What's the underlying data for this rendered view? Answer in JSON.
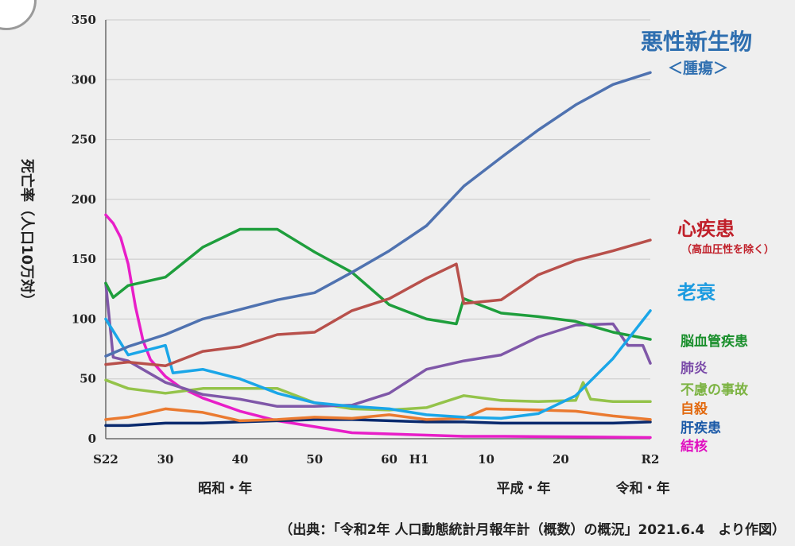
{
  "chart_data": {
    "type": "line",
    "ylabel": "死亡率（人口10万対）",
    "ylim": [
      0,
      350
    ],
    "yticks": [
      0,
      50,
      100,
      150,
      200,
      250,
      300,
      350
    ],
    "grid": true,
    "x_start": 1947,
    "x_end": 2020,
    "x_ticks": [
      {
        "label": "S22",
        "x": 1947
      },
      {
        "label": "30",
        "x": 1955
      },
      {
        "label": "40",
        "x": 1965
      },
      {
        "label": "50",
        "x": 1975
      },
      {
        "label": "60",
        "x": 1985
      },
      {
        "label": "H1",
        "x": 1989
      },
      {
        "label": "10",
        "x": 1998
      },
      {
        "label": "20",
        "x": 2008
      },
      {
        "label": "R2",
        "x": 2020
      }
    ],
    "eras": [
      {
        "label": "昭和・年",
        "x": 1963
      },
      {
        "label": "平成・年",
        "x": 2003
      },
      {
        "label": "令和・年",
        "x": 2019
      }
    ],
    "source": "（出典：「令和2年 人口動態統計月報年計（概数）の概況」2021.6.4　より作図）",
    "series": [
      {
        "name": "悪性新生物",
        "sublabel": "＜腫瘍＞",
        "color": "#4f72b0",
        "label_color": "#2f6fb0",
        "points": [
          [
            1947,
            69
          ],
          [
            1950,
            77
          ],
          [
            1955,
            87
          ],
          [
            1960,
            100
          ],
          [
            1965,
            108
          ],
          [
            1970,
            116
          ],
          [
            1975,
            122
          ],
          [
            1980,
            139
          ],
          [
            1985,
            157
          ],
          [
            1990,
            178
          ],
          [
            1995,
            211
          ],
          [
            2000,
            235
          ],
          [
            2005,
            258
          ],
          [
            2010,
            279
          ],
          [
            2015,
            296
          ],
          [
            2020,
            306
          ]
        ]
      },
      {
        "name": "心疾患",
        "sublabel": "（高血圧性を除く）",
        "color": "#b8504b",
        "label_color": "#c0202a",
        "points": [
          [
            1947,
            62
          ],
          [
            1950,
            64
          ],
          [
            1955,
            61
          ],
          [
            1960,
            73
          ],
          [
            1965,
            77
          ],
          [
            1970,
            87
          ],
          [
            1975,
            89
          ],
          [
            1980,
            107
          ],
          [
            1985,
            117
          ],
          [
            1990,
            134
          ],
          [
            1994,
            146
          ],
          [
            1995,
            113
          ],
          [
            2000,
            116
          ],
          [
            2005,
            137
          ],
          [
            2010,
            149
          ],
          [
            2015,
            157
          ],
          [
            2020,
            166
          ]
        ]
      },
      {
        "name": "老衰",
        "color": "#1aa6e8",
        "label_color": "#1c9be0",
        "points": [
          [
            1947,
            100
          ],
          [
            1950,
            70
          ],
          [
            1955,
            78
          ],
          [
            1956,
            55
          ],
          [
            1960,
            58
          ],
          [
            1965,
            50
          ],
          [
            1970,
            38
          ],
          [
            1975,
            30
          ],
          [
            1980,
            27
          ],
          [
            1985,
            25
          ],
          [
            1990,
            20
          ],
          [
            1995,
            18
          ],
          [
            2000,
            17
          ],
          [
            2005,
            21
          ],
          [
            2010,
            36
          ],
          [
            2015,
            67
          ],
          [
            2020,
            107
          ]
        ]
      },
      {
        "name": "脳血管疾患",
        "color": "#1e9e3c",
        "label_color": "#1a8f2c",
        "points": [
          [
            1947,
            130
          ],
          [
            1948,
            118
          ],
          [
            1950,
            128
          ],
          [
            1955,
            135
          ],
          [
            1960,
            160
          ],
          [
            1965,
            175
          ],
          [
            1970,
            175
          ],
          [
            1975,
            156
          ],
          [
            1980,
            139
          ],
          [
            1985,
            112
          ],
          [
            1990,
            100
          ],
          [
            1994,
            96
          ],
          [
            1995,
            117
          ],
          [
            2000,
            105
          ],
          [
            2005,
            102
          ],
          [
            2010,
            98
          ],
          [
            2015,
            89
          ],
          [
            2020,
            83
          ]
        ]
      },
      {
        "name": "肺炎",
        "color": "#7f57a8",
        "label_color": "#7a4aa8",
        "points": [
          [
            1947,
            130
          ],
          [
            1948,
            68
          ],
          [
            1950,
            65
          ],
          [
            1955,
            47
          ],
          [
            1960,
            37
          ],
          [
            1965,
            33
          ],
          [
            1970,
            27
          ],
          [
            1975,
            27
          ],
          [
            1980,
            28
          ],
          [
            1985,
            38
          ],
          [
            1990,
            58
          ],
          [
            1995,
            65
          ],
          [
            2000,
            70
          ],
          [
            2005,
            85
          ],
          [
            2010,
            95
          ],
          [
            2015,
            96
          ],
          [
            2017,
            78
          ],
          [
            2019,
            78
          ],
          [
            2020,
            63
          ]
        ]
      },
      {
        "name": "不慮の事故",
        "color": "#94c34a",
        "label_color": "#7cb342",
        "points": [
          [
            1947,
            49
          ],
          [
            1950,
            42
          ],
          [
            1955,
            38
          ],
          [
            1960,
            42
          ],
          [
            1965,
            42
          ],
          [
            1970,
            42
          ],
          [
            1975,
            30
          ],
          [
            1980,
            25
          ],
          [
            1985,
            24
          ],
          [
            1990,
            26
          ],
          [
            1995,
            36
          ],
          [
            2000,
            32
          ],
          [
            2005,
            31
          ],
          [
            2010,
            32
          ],
          [
            2011,
            47
          ],
          [
            2012,
            33
          ],
          [
            2015,
            31
          ],
          [
            2020,
            31
          ]
        ]
      },
      {
        "name": "自殺",
        "color": "#ea7a30",
        "label_color": "#e26a10",
        "points": [
          [
            1947,
            16
          ],
          [
            1950,
            18
          ],
          [
            1955,
            25
          ],
          [
            1960,
            22
          ],
          [
            1965,
            15
          ],
          [
            1970,
            16
          ],
          [
            1975,
            18
          ],
          [
            1980,
            17
          ],
          [
            1985,
            20
          ],
          [
            1990,
            16
          ],
          [
            1995,
            17
          ],
          [
            1998,
            25
          ],
          [
            2005,
            24
          ],
          [
            2010,
            23
          ],
          [
            2015,
            19
          ],
          [
            2020,
            16
          ]
        ]
      },
      {
        "name": "肝疾患",
        "color": "#0a2a6e",
        "label_color": "#1c5aa8",
        "points": [
          [
            1947,
            11
          ],
          [
            1950,
            11
          ],
          [
            1955,
            13
          ],
          [
            1960,
            13
          ],
          [
            1965,
            14
          ],
          [
            1970,
            15
          ],
          [
            1975,
            16
          ],
          [
            1980,
            16
          ],
          [
            1985,
            15
          ],
          [
            1990,
            14
          ],
          [
            1995,
            14
          ],
          [
            2000,
            13
          ],
          [
            2005,
            13
          ],
          [
            2010,
            13
          ],
          [
            2015,
            13
          ],
          [
            2020,
            14
          ]
        ]
      },
      {
        "name": "結核",
        "color": "#e81ec8",
        "label_color": "#e010c0",
        "points": [
          [
            1947,
            187
          ],
          [
            1948,
            180
          ],
          [
            1949,
            168
          ],
          [
            1950,
            146
          ],
          [
            1951,
            110
          ],
          [
            1952,
            82
          ],
          [
            1953,
            66
          ],
          [
            1955,
            52
          ],
          [
            1957,
            43
          ],
          [
            1960,
            34
          ],
          [
            1965,
            23
          ],
          [
            1970,
            15
          ],
          [
            1975,
            10
          ],
          [
            1980,
            5
          ],
          [
            1985,
            4
          ],
          [
            1990,
            3
          ],
          [
            1995,
            2
          ],
          [
            2000,
            2
          ],
          [
            2020,
            1
          ]
        ]
      }
    ]
  }
}
